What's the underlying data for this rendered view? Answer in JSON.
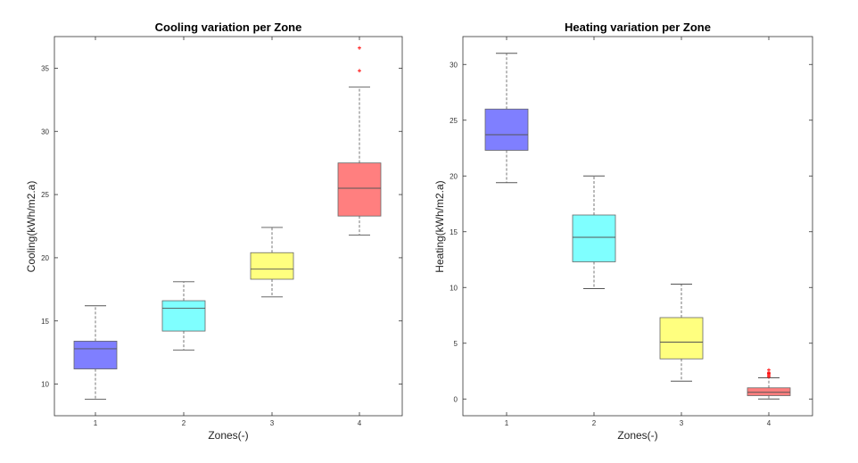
{
  "chart_data": [
    {
      "type": "box",
      "title": "Cooling variation per Zone",
      "xlabel": "Zones(-)",
      "ylabel": "Cooling(kWh/m2.a)",
      "ylim": [
        7.5,
        37.5
      ],
      "yticks": [
        10,
        15,
        20,
        25,
        30,
        35
      ],
      "categories": [
        "1",
        "2",
        "3",
        "4"
      ],
      "boxes": [
        {
          "category": "1",
          "whisker_low": 8.8,
          "q1": 11.2,
          "median": 12.8,
          "q3": 13.4,
          "whisker_high": 16.2,
          "outliers": [],
          "color": "#7f7fff"
        },
        {
          "category": "2",
          "whisker_low": 12.7,
          "q1": 14.2,
          "median": 16.0,
          "q3": 16.6,
          "whisker_high": 18.1,
          "outliers": [],
          "color": "#7fffff"
        },
        {
          "category": "3",
          "whisker_low": 16.9,
          "q1": 18.3,
          "median": 19.1,
          "q3": 20.4,
          "whisker_high": 22.4,
          "outliers": [],
          "color": "#ffff7f"
        },
        {
          "category": "4",
          "whisker_low": 21.8,
          "q1": 23.3,
          "median": 25.5,
          "q3": 27.5,
          "whisker_high": 33.5,
          "outliers": [
            34.8,
            36.6
          ],
          "color": "#ff7f7f"
        }
      ]
    },
    {
      "type": "box",
      "title": "Heating variation per Zone",
      "xlabel": "Zones(-)",
      "ylabel": "Heating(kWh/m2.a)",
      "ylim": [
        -1.5,
        32.5
      ],
      "yticks": [
        0,
        5,
        10,
        15,
        20,
        25,
        30
      ],
      "categories": [
        "1",
        "2",
        "3",
        "4"
      ],
      "boxes": [
        {
          "category": "1",
          "whisker_low": 19.4,
          "q1": 22.3,
          "median": 23.7,
          "q3": 26.0,
          "whisker_high": 31.0,
          "outliers": [],
          "color": "#7f7fff"
        },
        {
          "category": "2",
          "whisker_low": 9.9,
          "q1": 12.3,
          "median": 14.5,
          "q3": 16.5,
          "whisker_high": 20.0,
          "outliers": [],
          "color": "#7fffff"
        },
        {
          "category": "3",
          "whisker_low": 1.6,
          "q1": 3.6,
          "median": 5.1,
          "q3": 7.3,
          "whisker_high": 10.3,
          "outliers": [],
          "color": "#ffff7f"
        },
        {
          "category": "4",
          "whisker_low": 0.0,
          "q1": 0.3,
          "median": 0.6,
          "q3": 1.0,
          "whisker_high": 1.9,
          "outliers": [
            2.0,
            2.1,
            2.2,
            2.3,
            2.4,
            2.6
          ],
          "color": "#ff7f7f"
        }
      ]
    }
  ],
  "style": {
    "outlier_color": "#ff0000",
    "whisker_color": "#555555",
    "median_color": "#555555",
    "axis_color": "#333333",
    "grid": false
  }
}
